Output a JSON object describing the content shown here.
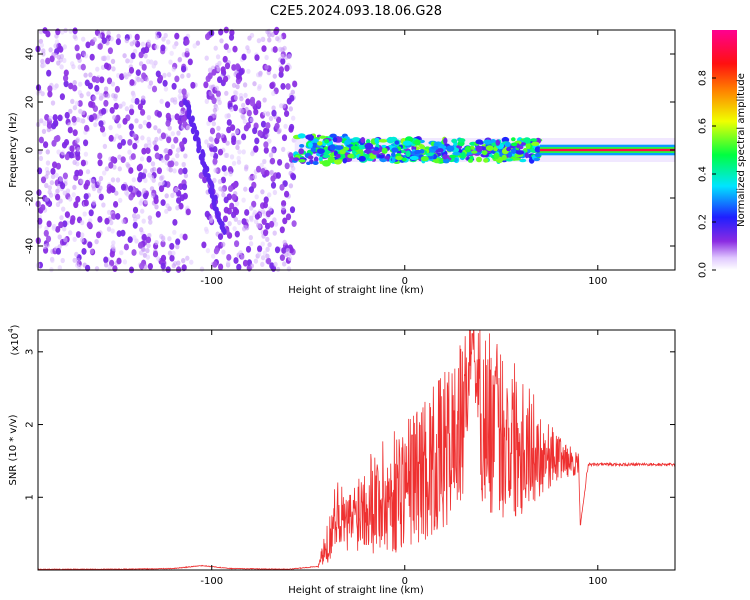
{
  "title": "C2E5.2024.093.18.06.G28",
  "chart_data": [
    {
      "type": "heatmap",
      "xlabel": "Height of straight line (km)",
      "ylabel": "Frequency (Hz)",
      "xlim": [
        -190,
        140
      ],
      "ylim": [
        -50,
        50
      ],
      "xticks": [
        -100,
        0,
        100
      ],
      "yticks": [
        -40,
        -20,
        0,
        20,
        40
      ],
      "grid": false,
      "colorbar": {
        "label": "Normalized spectral amplitude",
        "range": [
          0.0,
          1.0
        ],
        "ticks": [
          0.0,
          0.2,
          0.4,
          0.6,
          0.8
        ],
        "tick_labels": [
          "0.0",
          "0.2",
          "0.4",
          "0.6",
          "0.8"
        ],
        "colormap": "hsv-like (white, violet, blue, cyan, green, yellow, orange, red, magenta)"
      },
      "regions": [
        {
          "x": [
            -190,
            -57
          ],
          "freq": [
            -50,
            50
          ],
          "amplitude": [
            0.02,
            0.12
          ],
          "description": "broadband noise, purple speckle"
        },
        {
          "x": [
            -57,
            70
          ],
          "freq": [
            -5,
            5
          ],
          "amplitude": [
            0.3,
            0.6
          ],
          "description": "narrow carrier band near 0 Hz"
        },
        {
          "x": [
            70,
            140
          ],
          "freq": [
            -2,
            2
          ],
          "amplitude": [
            0.85,
            1.0
          ],
          "description": "strong carrier line at 0 Hz"
        }
      ],
      "colors": {
        "noise": "#7a2be0",
        "band": "#00d8ff",
        "peak": "#ff1a1a"
      }
    },
    {
      "type": "line",
      "xlabel": "Height of straight line (km)",
      "ylabel": "SNR (10 * v/v)",
      "y_scale_label": "(x10",
      "y_scale_exponent": "4",
      "xlim": [
        -190,
        140
      ],
      "ylim": [
        0,
        3.3
      ],
      "xticks": [
        -100,
        0,
        100
      ],
      "yticks": [
        1,
        2,
        3
      ],
      "grid": false,
      "series": [
        {
          "color": "#ee3030",
          "x": [
            -190,
            -150,
            -120,
            -105,
            -90,
            -60,
            -45,
            -40,
            -35,
            -30,
            -20,
            -10,
            0,
            10,
            20,
            30,
            35,
            40,
            50,
            60,
            70,
            80,
            90,
            91,
            95,
            100,
            120,
            140
          ],
          "y": [
            0.01,
            0.01,
            0.02,
            0.06,
            0.02,
            0.01,
            0.05,
            0.35,
            0.85,
            0.6,
            1.0,
            0.95,
            1.2,
            1.4,
            1.6,
            2.0,
            3.25,
            2.1,
            1.9,
            1.8,
            1.6,
            1.55,
            1.45,
            0.62,
            1.45,
            1.45,
            1.45,
            1.45
          ],
          "oscillation_amplitude": [
            0,
            0,
            0,
            0,
            0,
            0,
            0.02,
            0.3,
            0.45,
            0.4,
            0.7,
            0.85,
            0.9,
            1.0,
            1.1,
            1.15,
            0.3,
            1.3,
            1.2,
            1.1,
            0.6,
            0.3,
            0.15,
            0,
            0.05,
            0.03,
            0.03,
            0.03
          ]
        }
      ]
    }
  ]
}
